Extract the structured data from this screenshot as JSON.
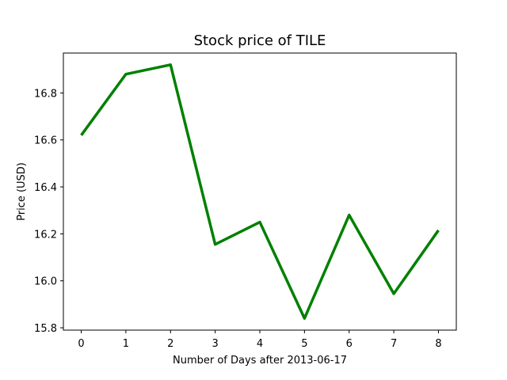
{
  "chart_data": {
    "type": "line",
    "title": "Stock price of TILE",
    "xlabel": "Number of Days after 2013-06-17",
    "ylabel": "Price (USD)",
    "x": [
      0,
      1,
      2,
      3,
      4,
      5,
      6,
      7,
      8
    ],
    "series": [
      {
        "values": [
          16.62,
          16.88,
          16.92,
          16.155,
          16.25,
          15.84,
          16.28,
          15.945,
          16.215
        ],
        "color": "#008000"
      }
    ],
    "xticks": [
      0,
      1,
      2,
      3,
      4,
      5,
      6,
      7,
      8
    ],
    "xtick_labels": [
      "0",
      "1",
      "2",
      "3",
      "4",
      "5",
      "6",
      "7",
      "8"
    ],
    "yticks": [
      15.8,
      16.0,
      16.2,
      16.4,
      16.6,
      16.8
    ],
    "ytick_labels": [
      "15.8",
      "16.0",
      "16.2",
      "16.4",
      "16.6",
      "16.8"
    ],
    "xlim": [
      -0.4,
      8.4
    ],
    "ylim": [
      15.79,
      16.97
    ],
    "grid": false,
    "legend": false
  }
}
